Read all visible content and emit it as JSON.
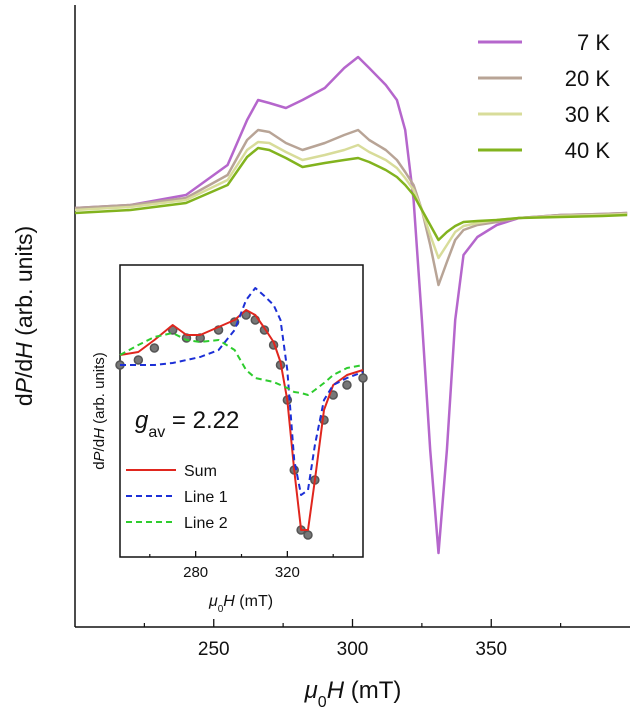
{
  "chart_data": [
    {
      "type": "line",
      "xlabel": [
        "μ",
        "0",
        "H",
        " (mT)"
      ],
      "ylabel": [
        "d",
        "P",
        "/d",
        "H",
        " (arb. units)"
      ],
      "xlim": [
        200,
        400
      ],
      "ylim": [
        0,
        622
      ],
      "xticks": [
        250,
        300,
        350
      ],
      "xticks_minor": [
        225,
        275,
        325,
        375
      ],
      "legend": "upper right",
      "x": [
        200,
        220,
        240,
        255,
        262,
        266,
        270,
        276,
        282,
        290,
        297,
        302,
        306,
        312,
        316,
        319,
        322,
        325,
        328,
        331,
        334,
        337,
        340,
        345,
        352,
        360,
        375,
        390,
        399
      ],
      "series": [
        {
          "name": "7 K",
          "color": "#b566cc",
          "values": [
            419,
            422,
            432,
            462,
            507,
            527,
            524,
            519,
            527,
            539,
            559,
            570,
            559,
            542,
            527,
            497,
            427,
            307,
            177,
            74,
            177,
            307,
            372,
            390,
            402,
            409,
            412,
            413,
            414
          ]
        },
        {
          "name": "20 K",
          "color": "#b8a496",
          "values": [
            419,
            422,
            429,
            452,
            487,
            497,
            495,
            484,
            477,
            484,
            492,
            497,
            487,
            477,
            467,
            455,
            442,
            417,
            382,
            342,
            365,
            387,
            397,
            402,
            405,
            409,
            412,
            413,
            414
          ]
        },
        {
          "name": "30 K",
          "color": "#d8dc9a",
          "values": [
            417,
            420,
            427,
            447,
            477,
            485,
            484,
            475,
            467,
            472,
            477,
            482,
            475,
            467,
            459,
            449,
            437,
            417,
            392,
            369,
            382,
            395,
            401,
            404,
            407,
            409,
            411,
            412,
            413
          ]
        },
        {
          "name": "40 K",
          "color": "#82b31e",
          "values": [
            414,
            417,
            424,
            442,
            470,
            479,
            477,
            469,
            460,
            464,
            467,
            469,
            465,
            457,
            450,
            442,
            432,
            417,
            402,
            387,
            395,
            401,
            405,
            406,
            407,
            409,
            410,
            411,
            412
          ]
        }
      ]
    },
    {
      "type": "line",
      "xlabel": [
        "μ",
        "0",
        "H",
        " (mT)"
      ],
      "ylabel": [
        "d",
        "P",
        "/d",
        "H",
        " (arb. units)"
      ],
      "annotation": [
        "g",
        "av",
        " = 2.22"
      ],
      "xlim": [
        247,
        353
      ],
      "ylim": [
        0,
        292
      ],
      "xticks": [
        280,
        320
      ],
      "xticks_minor": [
        260,
        300,
        340
      ],
      "legend": "lower left",
      "x": [
        247,
        255,
        262,
        270,
        276,
        282,
        290,
        297,
        302,
        306,
        310,
        314,
        317,
        320,
        323,
        326,
        329,
        332,
        336,
        340,
        346,
        353
      ],
      "series": [
        {
          "color": "#555555",
          "marker": "circle",
          "values": [
            192,
            197,
            209,
            227,
            219,
            219,
            227,
            235,
            242,
            237,
            227,
            212,
            192,
            157,
            87,
            27,
            22,
            77,
            137,
            162,
            172,
            179
          ]
        },
        {
          "name": "Sum",
          "color": "#e0261e",
          "values": [
            202,
            205,
            217,
            232,
            222,
            222,
            230,
            237,
            247,
            242,
            229,
            215,
            195,
            157,
            87,
            27,
            27,
            77,
            147,
            172,
            182,
            187
          ]
        },
        {
          "name": "Line 1",
          "color": "#1c2fd6",
          "dash": true,
          "values": [
            192,
            192,
            192,
            194,
            197,
            200,
            207,
            227,
            257,
            269,
            261,
            252,
            237,
            187,
            97,
            62,
            67,
            112,
            157,
            172,
            179,
            185
          ]
        },
        {
          "name": "Line 2",
          "color": "#2ecc2e",
          "dash": true,
          "values": [
            202,
            212,
            220,
            224,
            217,
            215,
            217,
            207,
            187,
            179,
            177,
            175,
            172,
            169,
            165,
            164,
            162,
            167,
            174,
            182,
            189,
            192
          ]
        }
      ]
    }
  ]
}
